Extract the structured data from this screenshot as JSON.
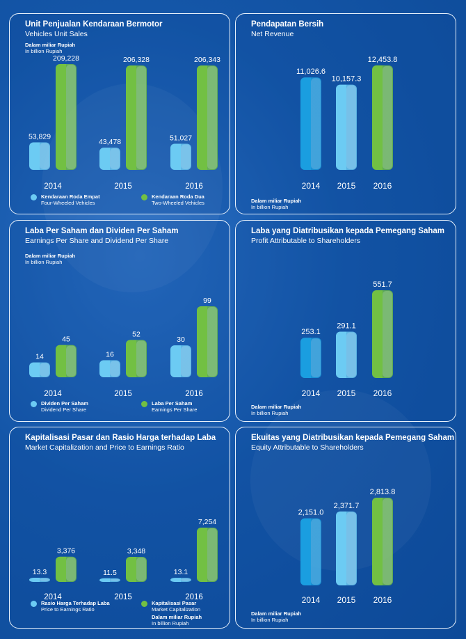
{
  "colors": {
    "light_blue": "#6ccbf3",
    "dark_blue": "#1a9ee0",
    "green": "#72c043",
    "background": "#1456a8"
  },
  "panels": [
    {
      "id": "vehicles",
      "title": "Unit Penjualan Kendaraan Bermotor",
      "subtitle": "Vehicles Unit Sales",
      "unit_1": "Dalam miliar Rupiah",
      "unit_2": "In billion Rupiah",
      "legend": [
        {
          "label_1": "Kendaraan Roda Empat",
          "label_2": "Four-Wheeled Vehicles",
          "color": "#6ccbf3"
        },
        {
          "label_1": "Kendaraan Roda Dua",
          "label_2": "Two-Wheeled Vehicles",
          "color": "#72c043"
        }
      ]
    },
    {
      "id": "revenue",
      "title": "Pendapatan Bersih",
      "subtitle": "Net Revenue",
      "unit_1": "Dalam miliar Rupiah",
      "unit_2": "In billion Rupiah",
      "legend": []
    },
    {
      "id": "eps",
      "title": "Laba Per Saham dan Dividen Per Saham",
      "subtitle": "Earnings Per Share and Dividend Per Share",
      "unit_1": "Dalam miliar Rupiah",
      "unit_2": "In billion Rupiah",
      "legend": [
        {
          "label_1": "Dividen Per Saham",
          "label_2": "Dividend Per Share",
          "color": "#6ccbf3"
        },
        {
          "label_1": "Laba Per Saham",
          "label_2": "Earnings Per Share",
          "color": "#72c043"
        }
      ]
    },
    {
      "id": "profit",
      "title": "Laba yang Diatribusikan kepada Pemegang Saham",
      "subtitle": "Profit Attributable to Shareholders",
      "unit_1": "Dalam miliar Rupiah",
      "unit_2": "In billion Rupiah",
      "legend": []
    },
    {
      "id": "marketcap",
      "title": "Kapitalisasi Pasar dan Rasio Harga terhadap Laba",
      "subtitle": "Market Capitalization and Price to Earnings Ratio",
      "unit_1": "Dalam miliar Rupiah",
      "unit_2": "In billion Rupiah",
      "legend": [
        {
          "label_1": "Rasio Harga Terhadap Laba",
          "label_2": "Price to Earnings Ratio",
          "color": "#6ccbf3"
        },
        {
          "label_1": "Kapitalisasi Pasar",
          "label_2": "Market Capitalization",
          "color": "#72c043"
        }
      ]
    },
    {
      "id": "equity",
      "title": "Ekuitas yang Diatribusikan kepada Pemegang Saham",
      "subtitle": "Equity Attributable to Shareholders",
      "unit_1": "Dalam miliar Rupiah",
      "unit_2": "In billion Rupiah",
      "legend": []
    }
  ],
  "chart_data": [
    {
      "type": "bar",
      "categories": [
        "2014",
        "2015",
        "2016"
      ],
      "series": [
        {
          "name": "Kendaraan Roda Empat",
          "values": [
            53829,
            43478,
            51027
          ],
          "labels": [
            "53,829",
            "43,478",
            "51,027"
          ]
        },
        {
          "name": "Kendaraan Roda Dua",
          "values": [
            209228,
            206328,
            206343
          ],
          "labels": [
            "209,228",
            "206,328",
            "206,343"
          ]
        }
      ]
    },
    {
      "type": "bar",
      "categories": [
        "2014",
        "2015",
        "2016"
      ],
      "series": [
        {
          "values": [
            11026.6,
            10157.3,
            12453.8
          ],
          "labels": [
            "11,026.6",
            "10,157.3",
            "12,453.8"
          ]
        }
      ]
    },
    {
      "type": "bar",
      "categories": [
        "2014",
        "2015",
        "2016"
      ],
      "series": [
        {
          "name": "Dividen Per Saham",
          "values": [
            14,
            16,
            30
          ],
          "labels": [
            "14",
            "16",
            "30"
          ]
        },
        {
          "name": "Laba Per Saham",
          "values": [
            45,
            52,
            99
          ],
          "labels": [
            "45",
            "52",
            "99"
          ]
        }
      ]
    },
    {
      "type": "bar",
      "categories": [
        "2014",
        "2015",
        "2016"
      ],
      "series": [
        {
          "values": [
            253.1,
            291.1,
            551.7
          ],
          "labels": [
            "253.1",
            "291.1",
            "551.7"
          ]
        }
      ]
    },
    {
      "type": "bar",
      "categories": [
        "2014",
        "2015",
        "2016"
      ],
      "series": [
        {
          "name": "Rasio Harga Terhadap Laba",
          "values": [
            13.3,
            11.5,
            13.1
          ],
          "labels": [
            "13.3",
            "11.5",
            "13.1"
          ]
        },
        {
          "name": "Kapitalisasi Pasar",
          "values": [
            3376,
            3348,
            7254
          ],
          "labels": [
            "3,376",
            "3,348",
            "7,254"
          ]
        }
      ]
    },
    {
      "type": "bar",
      "categories": [
        "2014",
        "2015",
        "2016"
      ],
      "series": [
        {
          "values": [
            2151.0,
            2371.7,
            2813.8
          ],
          "labels": [
            "2,151.0",
            "2,371.7",
            "2,813.8"
          ]
        }
      ]
    }
  ]
}
